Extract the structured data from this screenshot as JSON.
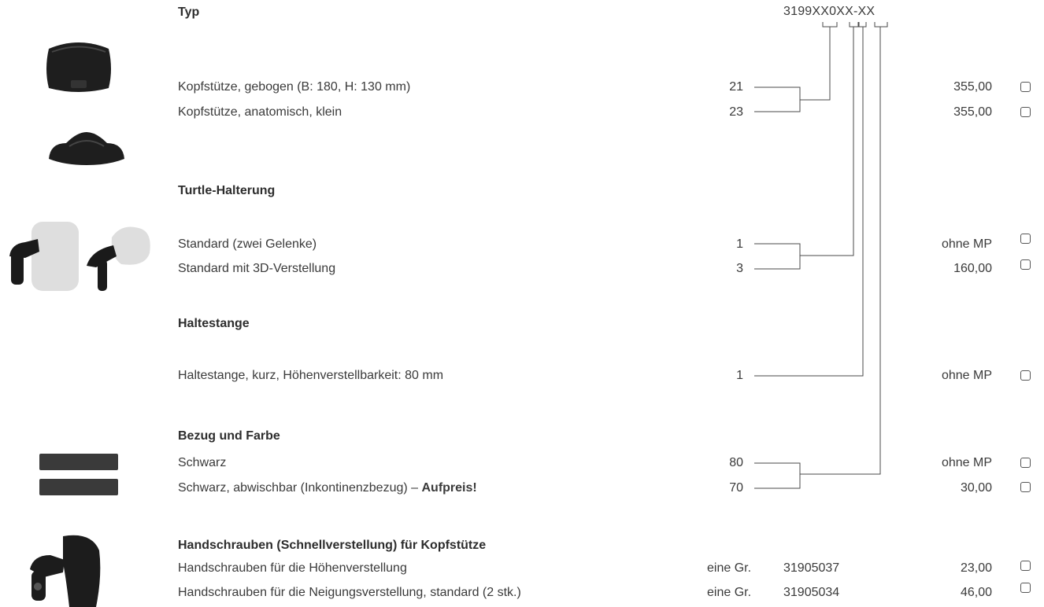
{
  "header": {
    "typ_label": "Typ",
    "code": "3199XX0XX-XX"
  },
  "sections": {
    "kopfstuetze": {
      "rows": [
        {
          "label": "Kopfstütze, gebogen (B: 180, H: 130 mm)",
          "code": "21",
          "price": "355,00"
        },
        {
          "label": "Kopfstütze, anatomisch, klein",
          "code": "23",
          "price": "355,00"
        }
      ]
    },
    "turtle": {
      "title": "Turtle-Halterung",
      "rows": [
        {
          "label": "Standard (zwei Gelenke)",
          "code": "1",
          "price": "ohne MP"
        },
        {
          "label": "Standard mit 3D-Verstellung",
          "code": "3",
          "price": "160,00"
        }
      ]
    },
    "haltestange": {
      "title": "Haltestange",
      "rows": [
        {
          "label": "Haltestange, kurz, Höhenverstellbarkeit: 80 mm",
          "code": "1",
          "price": "ohne MP"
        }
      ]
    },
    "bezug": {
      "title": "Bezug und Farbe",
      "rows": [
        {
          "label": "Schwarz",
          "code": "80",
          "price": "ohne MP"
        },
        {
          "label": "Schwarz, abwischbar (Inkontinenzbezug) – ",
          "label_bold": "Aufpreis!",
          "code": "70",
          "price": "30,00"
        }
      ]
    },
    "handschrauben": {
      "title": "Handschrauben (Schnellverstellung) für Kopfstütze",
      "rows": [
        {
          "label": "Handschrauben für die Höhenverstellung",
          "size": "eine Gr.",
          "article": "31905037",
          "price": "23,00"
        },
        {
          "label": "Handschrauben für die Neigungsverstellung, standard (2 stk.)",
          "size": "eine Gr.",
          "article": "31905034",
          "price": "46,00"
        }
      ]
    }
  },
  "colors": {
    "text": "#3a3a3a",
    "swatch": "#3a3a3a",
    "line": "#4a4a4a"
  }
}
